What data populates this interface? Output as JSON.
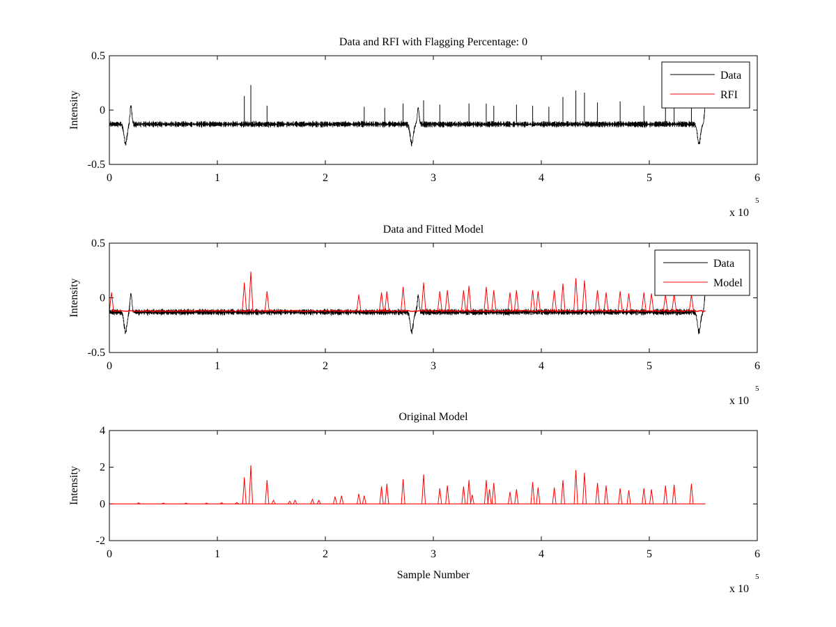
{
  "chart_data": [
    {
      "type": "line",
      "title": "Data and RFI with Flagging Percentage: 0",
      "xlabel": "",
      "ylabel": "Intensity",
      "xlim": [
        0,
        6
      ],
      "ylim": [
        -0.5,
        0.5
      ],
      "x_ticks": [
        "0",
        "1",
        "2",
        "3",
        "4",
        "5",
        "6"
      ],
      "y_ticks": [
        "-0.5",
        "0",
        "0.5"
      ],
      "x_multiplier": {
        "base": "x 10",
        "exponent": "5"
      },
      "legend_position": "top-right",
      "grid": false,
      "baseline": -0.13,
      "dips": [
        {
          "x": 0.15,
          "y": -0.31
        },
        {
          "x": 2.8,
          "y": -0.31
        },
        {
          "x": 5.46,
          "y": -0.31
        }
      ],
      "bumps": [
        {
          "x": 0.2,
          "y": 0.04
        },
        {
          "x": 2.86,
          "y": 0.02
        },
        {
          "x": 5.52,
          "y": 0.05
        }
      ],
      "spikes": [
        {
          "x": 1.25,
          "y": 0.13
        },
        {
          "x": 1.31,
          "y": 0.23
        },
        {
          "x": 1.46,
          "y": 0.04
        },
        {
          "x": 2.36,
          "y": 0.03
        },
        {
          "x": 2.55,
          "y": 0.02
        },
        {
          "x": 2.72,
          "y": 0.06
        },
        {
          "x": 2.91,
          "y": 0.09
        },
        {
          "x": 3.06,
          "y": 0.05
        },
        {
          "x": 3.33,
          "y": 0.06
        },
        {
          "x": 3.49,
          "y": 0.06
        },
        {
          "x": 3.56,
          "y": 0.04
        },
        {
          "x": 3.77,
          "y": 0.05
        },
        {
          "x": 3.92,
          "y": 0.04
        },
        {
          "x": 4.07,
          "y": 0.03
        },
        {
          "x": 4.2,
          "y": 0.12
        },
        {
          "x": 4.32,
          "y": 0.18
        },
        {
          "x": 4.4,
          "y": 0.16
        },
        {
          "x": 4.52,
          "y": 0.07
        },
        {
          "x": 4.73,
          "y": 0.08
        },
        {
          "x": 4.95,
          "y": 0.04
        },
        {
          "x": 5.15,
          "y": 0.03
        },
        {
          "x": 5.23,
          "y": 0.03
        },
        {
          "x": 5.39,
          "y": 0.02
        }
      ],
      "x_end": 5.52,
      "series": [
        {
          "name": "Data",
          "color": "#000000"
        },
        {
          "name": "RFI",
          "color": "#ff0000"
        }
      ]
    },
    {
      "type": "line",
      "title": "Data and Fitted Model",
      "xlabel": "",
      "ylabel": "Intensity",
      "xlim": [
        0,
        6
      ],
      "ylim": [
        -0.5,
        0.5
      ],
      "x_ticks": [
        "0",
        "1",
        "2",
        "3",
        "4",
        "5",
        "6"
      ],
      "y_ticks": [
        "-0.5",
        "0",
        "0.5"
      ],
      "x_multiplier": {
        "base": "x 10",
        "exponent": "5"
      },
      "legend_position": "top-right",
      "grid": false,
      "baseline": -0.13,
      "model_baseline": -0.12,
      "dips": [
        {
          "x": 0.15,
          "y": -0.31
        },
        {
          "x": 2.8,
          "y": -0.31
        },
        {
          "x": 5.46,
          "y": -0.31
        }
      ],
      "bumps": [
        {
          "x": 0.2,
          "y": 0.04
        },
        {
          "x": 2.86,
          "y": 0.02
        },
        {
          "x": 5.52,
          "y": 0.05
        }
      ],
      "spikes": [
        {
          "x": 0.02,
          "y": 0.05
        },
        {
          "x": 1.25,
          "y": 0.14
        },
        {
          "x": 1.31,
          "y": 0.24
        },
        {
          "x": 1.46,
          "y": 0.06
        },
        {
          "x": 2.31,
          "y": 0.03
        },
        {
          "x": 2.52,
          "y": 0.05
        },
        {
          "x": 2.57,
          "y": 0.06
        },
        {
          "x": 2.72,
          "y": 0.1
        },
        {
          "x": 2.91,
          "y": 0.14
        },
        {
          "x": 3.06,
          "y": 0.06
        },
        {
          "x": 3.13,
          "y": 0.07
        },
        {
          "x": 3.28,
          "y": 0.07
        },
        {
          "x": 3.33,
          "y": 0.11
        },
        {
          "x": 3.49,
          "y": 0.1
        },
        {
          "x": 3.56,
          "y": 0.07
        },
        {
          "x": 3.71,
          "y": 0.05
        },
        {
          "x": 3.77,
          "y": 0.07
        },
        {
          "x": 3.92,
          "y": 0.07
        },
        {
          "x": 3.97,
          "y": 0.06
        },
        {
          "x": 4.12,
          "y": 0.07
        },
        {
          "x": 4.2,
          "y": 0.13
        },
        {
          "x": 4.32,
          "y": 0.18
        },
        {
          "x": 4.4,
          "y": 0.16
        },
        {
          "x": 4.52,
          "y": 0.07
        },
        {
          "x": 4.6,
          "y": 0.05
        },
        {
          "x": 4.73,
          "y": 0.06
        },
        {
          "x": 4.81,
          "y": 0.04
        },
        {
          "x": 4.95,
          "y": 0.05
        },
        {
          "x": 5.02,
          "y": 0.04
        },
        {
          "x": 5.15,
          "y": 0.03
        },
        {
          "x": 5.23,
          "y": 0.04
        },
        {
          "x": 5.39,
          "y": 0.03
        }
      ],
      "x_end": 5.52,
      "series": [
        {
          "name": "Data",
          "color": "#000000"
        },
        {
          "name": "Model",
          "color": "#ff0000"
        }
      ]
    },
    {
      "type": "line",
      "title": "Original Model",
      "xlabel": "Sample Number",
      "ylabel": "Intensity",
      "xlim": [
        0,
        6
      ],
      "ylim": [
        -2,
        4
      ],
      "x_ticks": [
        "0",
        "1",
        "2",
        "3",
        "4",
        "5",
        "6"
      ],
      "y_ticks": [
        "-2",
        "0",
        "2",
        "4"
      ],
      "x_multiplier": {
        "base": "x 10",
        "exponent": "5"
      },
      "grid": false,
      "baseline": 0,
      "x_end": 5.52,
      "spikes": [
        {
          "x": 0.27,
          "y": 0.06
        },
        {
          "x": 0.5,
          "y": 0.05
        },
        {
          "x": 0.71,
          "y": 0.05
        },
        {
          "x": 0.9,
          "y": 0.05
        },
        {
          "x": 1.04,
          "y": 0.07
        },
        {
          "x": 1.18,
          "y": 0.08
        },
        {
          "x": 1.25,
          "y": 1.45
        },
        {
          "x": 1.31,
          "y": 2.1
        },
        {
          "x": 1.46,
          "y": 1.3
        },
        {
          "x": 1.52,
          "y": 0.2
        },
        {
          "x": 1.67,
          "y": 0.15
        },
        {
          "x": 1.72,
          "y": 0.2
        },
        {
          "x": 1.88,
          "y": 0.25
        },
        {
          "x": 1.94,
          "y": 0.2
        },
        {
          "x": 2.09,
          "y": 0.4
        },
        {
          "x": 2.15,
          "y": 0.45
        },
        {
          "x": 2.31,
          "y": 0.55
        },
        {
          "x": 2.36,
          "y": 0.45
        },
        {
          "x": 2.52,
          "y": 0.95
        },
        {
          "x": 2.57,
          "y": 1.1
        },
        {
          "x": 2.72,
          "y": 1.35
        },
        {
          "x": 2.91,
          "y": 1.6
        },
        {
          "x": 3.06,
          "y": 0.85
        },
        {
          "x": 3.13,
          "y": 1.0
        },
        {
          "x": 3.28,
          "y": 0.95
        },
        {
          "x": 3.33,
          "y": 1.3
        },
        {
          "x": 3.36,
          "y": 0.5
        },
        {
          "x": 3.49,
          "y": 1.3
        },
        {
          "x": 3.52,
          "y": 0.8
        },
        {
          "x": 3.56,
          "y": 1.15
        },
        {
          "x": 3.71,
          "y": 0.65
        },
        {
          "x": 3.77,
          "y": 0.8
        },
        {
          "x": 3.92,
          "y": 1.2
        },
        {
          "x": 3.97,
          "y": 0.9
        },
        {
          "x": 4.12,
          "y": 0.9
        },
        {
          "x": 4.2,
          "y": 1.3
        },
        {
          "x": 4.32,
          "y": 1.85
        },
        {
          "x": 4.4,
          "y": 1.7
        },
        {
          "x": 4.52,
          "y": 1.15
        },
        {
          "x": 4.6,
          "y": 1.0
        },
        {
          "x": 4.73,
          "y": 0.85
        },
        {
          "x": 4.81,
          "y": 0.75
        },
        {
          "x": 4.95,
          "y": 0.85
        },
        {
          "x": 5.02,
          "y": 0.8
        },
        {
          "x": 5.15,
          "y": 1.0
        },
        {
          "x": 5.23,
          "y": 1.05
        },
        {
          "x": 5.39,
          "y": 1.1
        }
      ],
      "series": [
        {
          "color": "#ff0000"
        }
      ]
    }
  ]
}
